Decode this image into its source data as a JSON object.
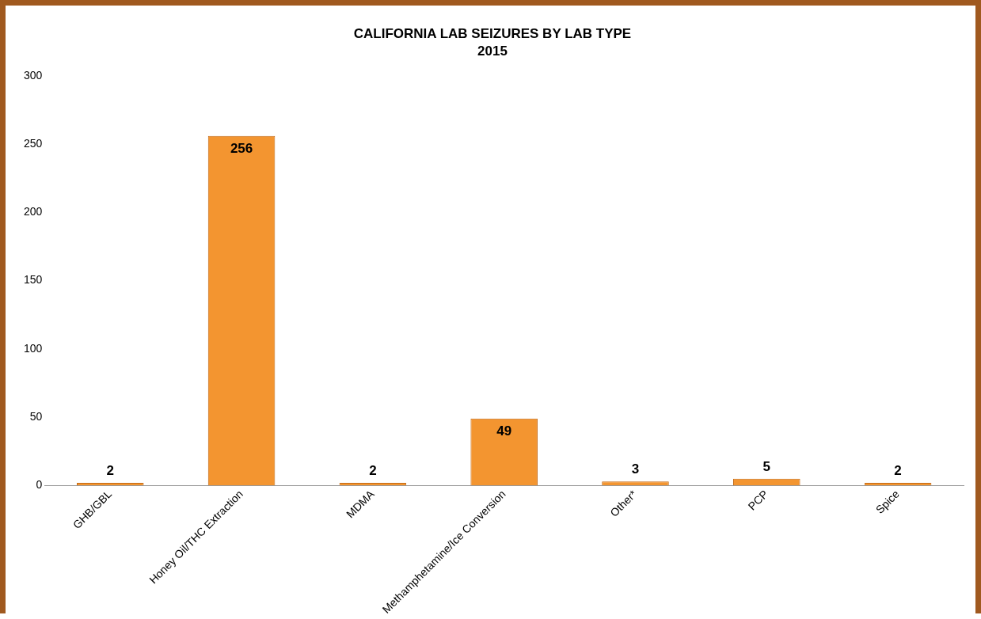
{
  "chart_data": {
    "type": "bar",
    "title": "CALIFORNIA LAB SEIZURES BY LAB TYPE",
    "subtitle": "2015",
    "categories": [
      "GHB/GBL",
      "Honey Oil/THC Extraction",
      "MDMA",
      "Methamphetamine/Ice Conversion",
      "Other*",
      "PCP",
      "Spice"
    ],
    "values": [
      2,
      256,
      2,
      49,
      3,
      5,
      2
    ],
    "color": "#f39530",
    "ylim": [
      0,
      300
    ],
    "yticks": [
      0,
      50,
      100,
      150,
      200,
      250,
      300
    ],
    "grid": false,
    "legend": false,
    "data_labels": true
  }
}
